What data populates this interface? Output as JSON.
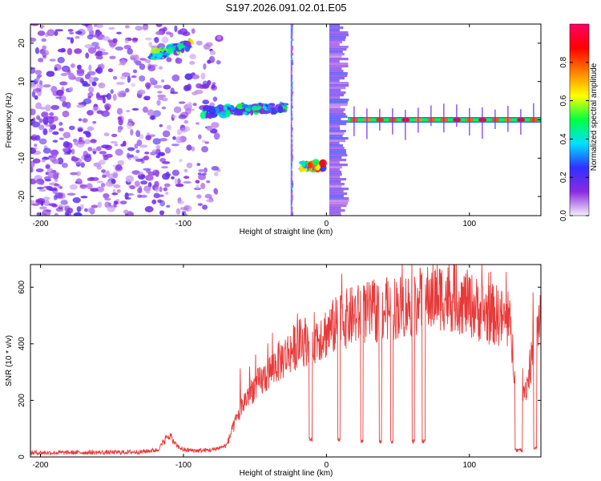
{
  "figure_title": "S197.2026.091.02.01.E05",
  "colors": {
    "snr_line": "#e83a3a",
    "frame": "#000000",
    "background": "#ffffff"
  },
  "chart_data": [
    {
      "type": "heatmap",
      "title": "S197.2026.091.02.01.E05",
      "xlabel": "Height of straight line (km)",
      "ylabel": "Frequency (Hz)",
      "xlim": [
        -207,
        150
      ],
      "ylim": [
        -25,
        25
      ],
      "xticks": [
        -200,
        -100,
        0,
        100
      ],
      "yticks": [
        -20,
        -10,
        0,
        10,
        20
      ],
      "colorbar": {
        "label": "Normalized spectral amplitude",
        "range": [
          0.0,
          1.0
        ],
        "ticks": [
          "0.0",
          "0.2",
          "0.4",
          "0.6",
          "0.8"
        ],
        "colormap": [
          "#f5f0fa",
          "#8a2be2",
          "#3030ff",
          "#00e0ff",
          "#00ff40",
          "#ffff00",
          "#ff8000",
          "#ff0000",
          "#ff0066"
        ]
      },
      "features": [
        {
          "name": "diffuse noise",
          "x_range": [
            -207,
            -75
          ],
          "freq_range": [
            -25,
            25
          ],
          "amplitude": 0.1
        },
        {
          "name": "bright streak",
          "x_range": [
            -122,
            -95
          ],
          "freq_center": 17,
          "amplitude": 0.45
        },
        {
          "name": "middle blobs",
          "x_range": [
            -88,
            -28
          ],
          "freq_center": 2,
          "amplitude": 0.35
        },
        {
          "name": "low cluster",
          "x_range": [
            -18,
            0
          ],
          "freq_center": -12,
          "amplitude": 0.6
        },
        {
          "name": "vertical streak",
          "x_range": [
            -25,
            -23
          ],
          "freq_range": [
            -25,
            25
          ],
          "amplitude": 0.25
        },
        {
          "name": "vertical streak",
          "x_range": [
            2,
            16
          ],
          "freq_range": [
            -25,
            25
          ],
          "amplitude": 0.2
        },
        {
          "name": "carrier line",
          "x_range": [
            15,
            150
          ],
          "freq_center": 0,
          "amplitude": 0.95
        }
      ]
    },
    {
      "type": "line",
      "xlabel": "Height of straight line (km)",
      "ylabel": "SNR (10 * v/v)",
      "xlim": [
        -207,
        150
      ],
      "ylim": [
        0,
        680
      ],
      "xticks": [
        -200,
        -100,
        0,
        100
      ],
      "yticks": [
        0,
        200,
        400,
        600
      ],
      "series": [
        {
          "name": "SNR",
          "x": [
            -207,
            -190,
            -170,
            -150,
            -130,
            -118,
            -110,
            -105,
            -100,
            -90,
            -80,
            -70,
            -64,
            -60,
            -55,
            -50,
            -45,
            -40,
            -35,
            -30,
            -20,
            -10,
            0,
            10,
            20,
            30,
            40,
            50,
            60,
            70,
            80,
            90,
            100,
            110,
            120,
            128,
            132,
            136,
            140,
            145,
            150
          ],
          "values": [
            15,
            15,
            16,
            16,
            18,
            25,
            80,
            40,
            25,
            22,
            25,
            40,
            120,
            170,
            220,
            250,
            270,
            300,
            330,
            350,
            400,
            420,
            440,
            480,
            500,
            510,
            520,
            530,
            540,
            560,
            570,
            560,
            540,
            510,
            500,
            470,
            300,
            230,
            250,
            380,
            520
          ]
        }
      ],
      "dropouts": [
        {
          "x": -12,
          "width": 2,
          "value": 60
        },
        {
          "x": 8,
          "width": 1.5,
          "value": 60
        },
        {
          "x": 24,
          "width": 1.5,
          "value": 55
        },
        {
          "x": 37,
          "width": 1.5,
          "value": 55
        },
        {
          "x": 45,
          "width": 1.5,
          "value": 55
        },
        {
          "x": 60,
          "width": 1.5,
          "value": 55
        },
        {
          "x": 67,
          "width": 2,
          "value": 55
        },
        {
          "x": 132,
          "width": 5,
          "value": 25
        },
        {
          "x": 145,
          "width": 2,
          "value": 30
        }
      ]
    }
  ]
}
